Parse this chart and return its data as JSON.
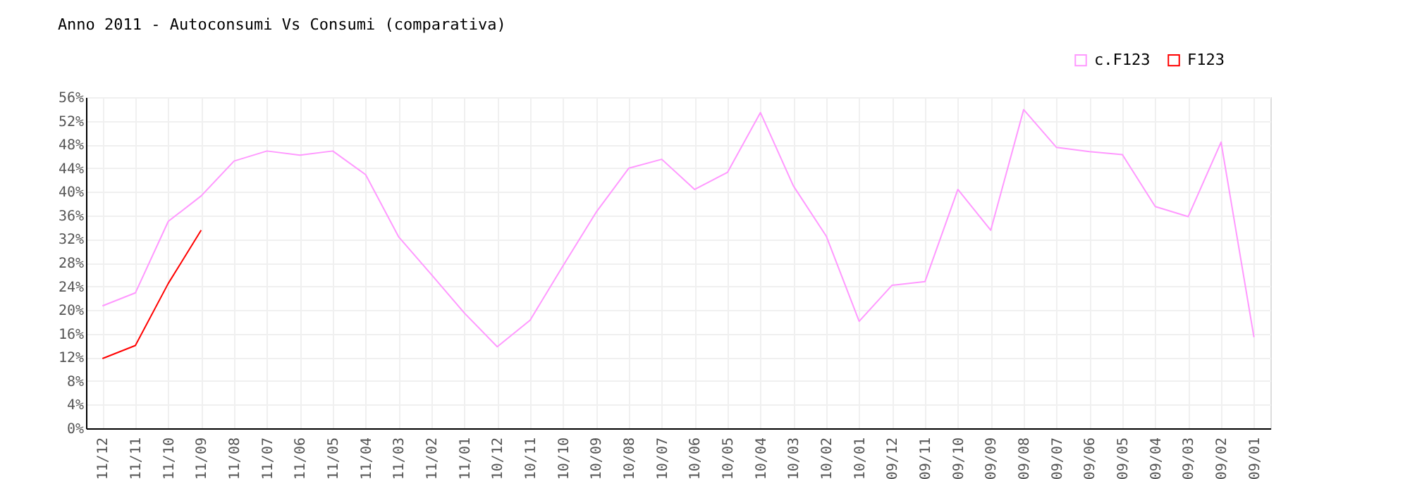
{
  "chart_data": {
    "type": "line",
    "title": "Anno 2011 - Autoconsumi Vs Consumi (comparativa)",
    "categories": [
      "11/12",
      "11/11",
      "11/10",
      "11/09",
      "11/08",
      "11/07",
      "11/06",
      "11/05",
      "11/04",
      "11/03",
      "11/02",
      "11/01",
      "10/12",
      "10/11",
      "10/10",
      "10/09",
      "10/08",
      "10/07",
      "10/06",
      "10/05",
      "10/04",
      "10/03",
      "10/02",
      "10/01",
      "09/12",
      "09/11",
      "09/10",
      "09/09",
      "09/08",
      "09/07",
      "09/06",
      "09/05",
      "09/04",
      "09/03",
      "09/02",
      "09/01"
    ],
    "series": [
      {
        "name": "c.F123",
        "color": "#ff99ff",
        "values": [
          20.7,
          22.9,
          35,
          39.3,
          45.2,
          46.9,
          46.2,
          46.9,
          42.9,
          32.4,
          26,
          19.5,
          13.8,
          18.3,
          27.5,
          36.5,
          44,
          45.5,
          40.4,
          43.3,
          53.4,
          41,
          32.5,
          18.1,
          24.2,
          24.8,
          40.4,
          33.5,
          53.9,
          47.5,
          46.8,
          46.3,
          37.5,
          35.8,
          48.4,
          15.4
        ]
      },
      {
        "name": "F123",
        "color": "#ff0000",
        "values": [
          11.8,
          14,
          24.5,
          33.5,
          null,
          null,
          null,
          null,
          null,
          null,
          null,
          null,
          null,
          null,
          null,
          null,
          null,
          null,
          null,
          null,
          null,
          null,
          null,
          null,
          null,
          null,
          null,
          null,
          null,
          null,
          null,
          null,
          null,
          null,
          null,
          null
        ]
      }
    ],
    "ylim": [
      0,
      56
    ],
    "yticks": [
      {
        "value": 0,
        "label": "0%"
      },
      {
        "value": 4,
        "label": "4%"
      },
      {
        "value": 8,
        "label": "8%"
      },
      {
        "value": 12,
        "label": "12%"
      },
      {
        "value": 16,
        "label": "16%"
      },
      {
        "value": 20,
        "label": "20%"
      },
      {
        "value": 24,
        "label": "24%"
      },
      {
        "value": 28,
        "label": "28%"
      },
      {
        "value": 32,
        "label": "32%"
      },
      {
        "value": 36,
        "label": "36%"
      },
      {
        "value": 40,
        "label": "40%"
      },
      {
        "value": 44,
        "label": "44%"
      },
      {
        "value": 48,
        "label": "48%"
      },
      {
        "value": 52,
        "label": "52%"
      },
      {
        "value": 56,
        "label": "56%"
      }
    ],
    "grid": true,
    "legend": "top right",
    "marker": "none",
    "line_style": "solid"
  }
}
